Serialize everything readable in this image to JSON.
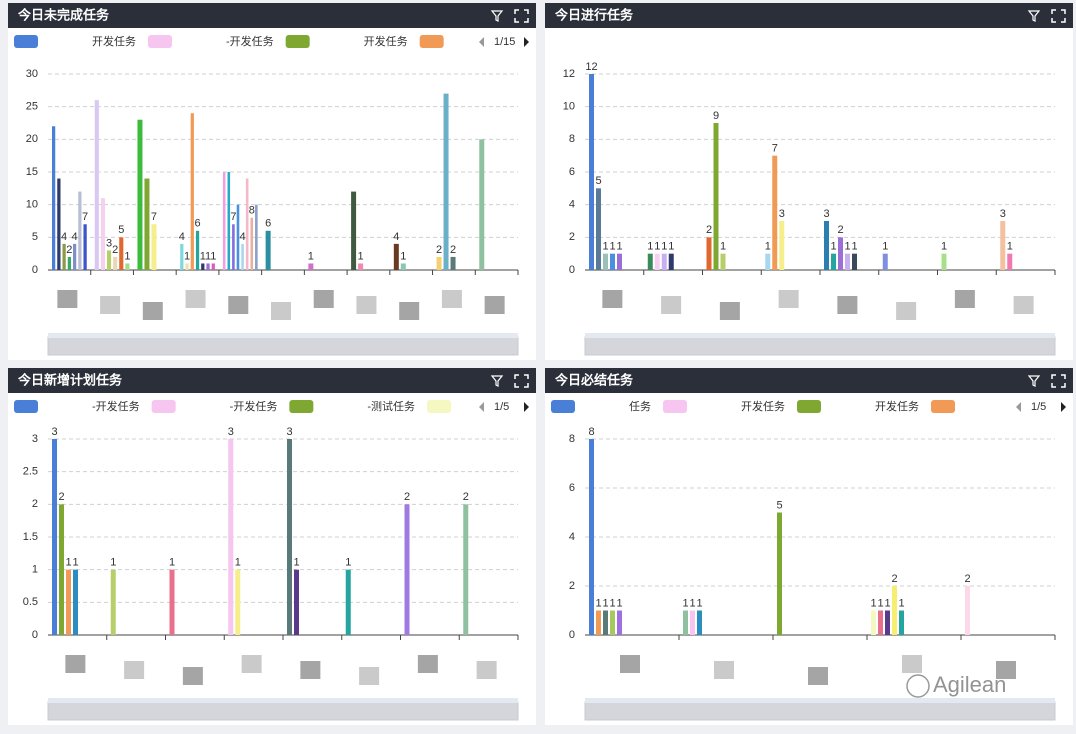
{
  "chart_data": [
    {
      "type": "bar",
      "title": "今日未完成任务",
      "page": "1/15",
      "legend": [
        {
          "name": "开发任务",
          "color": "#4a7fd8"
        },
        {
          "name": "-开发任务",
          "color": "#f7c6f0"
        },
        {
          "name": "开发任务",
          "color": "#7ea832"
        },
        {
          "color": "#f19a55"
        }
      ],
      "ylim": [
        0,
        30
      ],
      "yticks": [
        0,
        5,
        10,
        15,
        20,
        25,
        30
      ],
      "grid": true,
      "categories": [
        null,
        null,
        null,
        null,
        null,
        null,
        null,
        null,
        null,
        null,
        null
      ],
      "groups": [
        [
          {
            "value": 22,
            "color": "#4a7fd8"
          },
          {
            "value": 14,
            "color": "#2f3a6b"
          },
          {
            "value": 4,
            "color": "#8a9a4a",
            "label": "4"
          },
          {
            "value": 2,
            "color": "#3aa860",
            "label": "2"
          },
          {
            "value": 4,
            "color": "#7f8fc8",
            "label": "4"
          },
          {
            "value": 12,
            "color": "#b9bfd0"
          },
          {
            "value": 7,
            "color": "#3a56c8",
            "label": "7"
          }
        ],
        [
          {
            "value": 26,
            "color": "#d9c8f2"
          },
          {
            "value": 11,
            "color": "#f5d0ef"
          },
          {
            "value": 3,
            "color": "#b7cf6a",
            "label": "3"
          },
          {
            "value": 2,
            "color": "#e8d8b8",
            "label": "2"
          },
          {
            "value": 5,
            "color": "#e0672f",
            "label": "5"
          },
          {
            "value": 1,
            "color": "#a8d88a",
            "label": "1"
          }
        ],
        [
          {
            "value": 23,
            "color": "#3dbb3d"
          },
          {
            "value": 14,
            "color": "#7ea832"
          },
          {
            "value": 7,
            "color": "#f5ee8a",
            "label": "7"
          }
        ],
        [
          {
            "value": 4,
            "color": "#7ed8e0",
            "label": "4"
          },
          {
            "value": 1,
            "color": "#f0e0b0",
            "label": "1"
          },
          {
            "value": 24,
            "color": "#f19a55"
          },
          {
            "value": 6,
            "color": "#24a5a0",
            "label": "6"
          },
          {
            "value": 1,
            "color": "#2f3a6b",
            "label": "1"
          },
          {
            "value": 1,
            "color": "#9a6fd8",
            "label": "1"
          },
          {
            "value": 1,
            "color": "#d85fb8",
            "label": "1"
          }
        ],
        [
          {
            "value": 15,
            "color": "#f0a0e0"
          },
          {
            "value": 15,
            "color": "#2aa8c8"
          },
          {
            "value": 7,
            "color": "#7f6fe0",
            "label": "7"
          },
          {
            "value": 10,
            "color": "#4a90e0"
          },
          {
            "value": 4,
            "color": "#a8d8f0",
            "label": "4"
          },
          {
            "value": 14,
            "color": "#f5b8c8"
          },
          {
            "value": 8,
            "color": "#e8b0a0",
            "label": "8"
          },
          {
            "value": 10,
            "color": "#8aa0c8"
          }
        ],
        [
          {
            "value": 6,
            "color": "#2a8fa0",
            "label": "6"
          }
        ],
        [
          {
            "value": 1,
            "color": "#d070c8",
            "label": "1"
          }
        ],
        [
          {
            "value": 12,
            "color": "#3f5a3f"
          },
          {
            "value": 1,
            "color": "#f08ab0",
            "label": "1"
          }
        ],
        [
          {
            "value": 4,
            "color": "#6a3a20",
            "label": "4"
          },
          {
            "value": 1,
            "color": "#8ac8b0",
            "label": "1"
          }
        ],
        [
          {
            "value": 2,
            "color": "#f5d070",
            "label": "2"
          },
          {
            "value": 27,
            "color": "#6ab0c8"
          },
          {
            "value": 2,
            "color": "#5a7a7a",
            "label": "2"
          }
        ],
        [
          {
            "value": 20,
            "color": "#8fc0a0"
          }
        ]
      ]
    },
    {
      "type": "bar",
      "title": "今日进行任务",
      "data_labels": true,
      "ylim": [
        0,
        12
      ],
      "yticks": [
        0,
        2,
        4,
        6,
        8,
        10,
        12
      ],
      "grid": true,
      "categories": [
        null,
        null,
        null,
        null,
        null,
        null,
        null,
        null
      ],
      "groups": [
        [
          {
            "value": 12,
            "color": "#4a7fd8"
          },
          {
            "value": 5,
            "color": "#5a7a9a"
          },
          {
            "value": 1,
            "color": "#9ac0b8"
          },
          {
            "value": 1,
            "color": "#4a90e0"
          },
          {
            "value": 1,
            "color": "#9a6fd8"
          }
        ],
        [
          {
            "value": 1,
            "color": "#3a8a5a"
          },
          {
            "value": 1,
            "color": "#f5d0ef"
          },
          {
            "value": 1,
            "color": "#c8b0f0"
          },
          {
            "value": 1,
            "color": "#2f3a6b"
          }
        ],
        [
          {
            "value": 2,
            "color": "#e0672f"
          },
          {
            "value": 9,
            "color": "#7ea832"
          },
          {
            "value": 1,
            "color": "#b7cf6a"
          }
        ],
        [
          {
            "value": 1,
            "color": "#a8d8f0"
          },
          {
            "value": 7,
            "color": "#f19a55"
          },
          {
            "value": 3,
            "color": "#f5ee8a"
          }
        ],
        [
          {
            "value": 3,
            "color": "#2a7fb0"
          },
          {
            "value": 1,
            "color": "#24a5a0"
          },
          {
            "value": 2,
            "color": "#9a6fd8"
          },
          {
            "value": 1,
            "color": "#c8b0f0"
          },
          {
            "value": 1,
            "color": "#3a4a5a"
          }
        ],
        [
          {
            "value": 1,
            "color": "#7f8fe0"
          }
        ],
        [
          {
            "value": 1,
            "color": "#a8e08a"
          }
        ],
        [
          {
            "value": 3,
            "color": "#f5c0a0"
          },
          {
            "value": 1,
            "color": "#f07ab0"
          }
        ]
      ]
    },
    {
      "type": "bar",
      "title": "今日新增计划任务",
      "page": "1/5",
      "data_labels": true,
      "legend": [
        {
          "name": "-开发任务",
          "color": "#4a7fd8"
        },
        {
          "name": "-开发任务",
          "color": "#f7c6f0"
        },
        {
          "name": "-测试任务",
          "color": "#7ea832"
        },
        {
          "color": "#f5f8c0"
        }
      ],
      "ylim": [
        0,
        3
      ],
      "yticks": [
        0,
        0.5,
        1,
        1.5,
        2,
        2.5,
        3
      ],
      "grid": true,
      "categories": [
        null,
        null,
        null,
        null,
        null,
        null,
        null,
        null
      ],
      "groups": [
        [
          {
            "value": 3,
            "color": "#4a7fd8"
          },
          {
            "value": 2,
            "color": "#7ea832"
          },
          {
            "value": 1,
            "color": "#f19a55"
          },
          {
            "value": 1,
            "color": "#2a8fc0"
          }
        ],
        [
          {
            "value": 1,
            "color": "#b7cf6a"
          }
        ],
        [
          {
            "value": 1,
            "color": "#e8708a"
          }
        ],
        [
          {
            "value": 3,
            "color": "#f7c6f0"
          },
          {
            "value": 1,
            "color": "#f5ee8a"
          }
        ],
        [
          {
            "value": 3,
            "color": "#5a7a7a"
          },
          {
            "value": 1,
            "color": "#5a3a8a"
          }
        ],
        [
          {
            "value": 1,
            "color": "#24a5a0"
          }
        ],
        [
          {
            "value": 2,
            "color": "#a07ae0"
          }
        ],
        [
          {
            "value": 2,
            "color": "#8fc0a0"
          }
        ]
      ]
    },
    {
      "type": "bar",
      "title": "今日必结任务",
      "page": "1/5",
      "data_labels": true,
      "legend": [
        {
          "name": "任务",
          "color": "#4a7fd8"
        },
        {
          "name": "开发任务",
          "color": "#f7c6f0"
        },
        {
          "name": "开发任务",
          "color": "#7ea832"
        },
        {
          "color": "#f19a55"
        }
      ],
      "ylim": [
        0,
        8
      ],
      "yticks": [
        0,
        2,
        4,
        6,
        8
      ],
      "grid": true,
      "categories": [
        null,
        null,
        null,
        null,
        null
      ],
      "groups": [
        [
          {
            "value": 8,
            "color": "#4a7fd8"
          },
          {
            "value": 1,
            "color": "#f19a55"
          },
          {
            "value": 1,
            "color": "#5a7a7a"
          },
          {
            "value": 1,
            "color": "#a8c860"
          },
          {
            "value": 1,
            "color": "#a070e0"
          }
        ],
        [
          {
            "value": 1,
            "color": "#8fc0a0"
          },
          {
            "value": 1,
            "color": "#f7c6f0"
          },
          {
            "value": 1,
            "color": "#2a8fc0"
          }
        ],
        [
          {
            "value": 5,
            "color": "#7ea832"
          }
        ],
        [
          {
            "value": 1,
            "color": "#f5f8c0"
          },
          {
            "value": 1,
            "color": "#e8708a"
          },
          {
            "value": 1,
            "color": "#5a3a8a"
          },
          {
            "value": 2,
            "color": "#f5ee70"
          },
          {
            "value": 1,
            "color": "#24a5a0"
          }
        ],
        [
          {
            "value": 2,
            "color": "#fcd8e8"
          }
        ]
      ],
      "watermark": "Agilean"
    }
  ]
}
